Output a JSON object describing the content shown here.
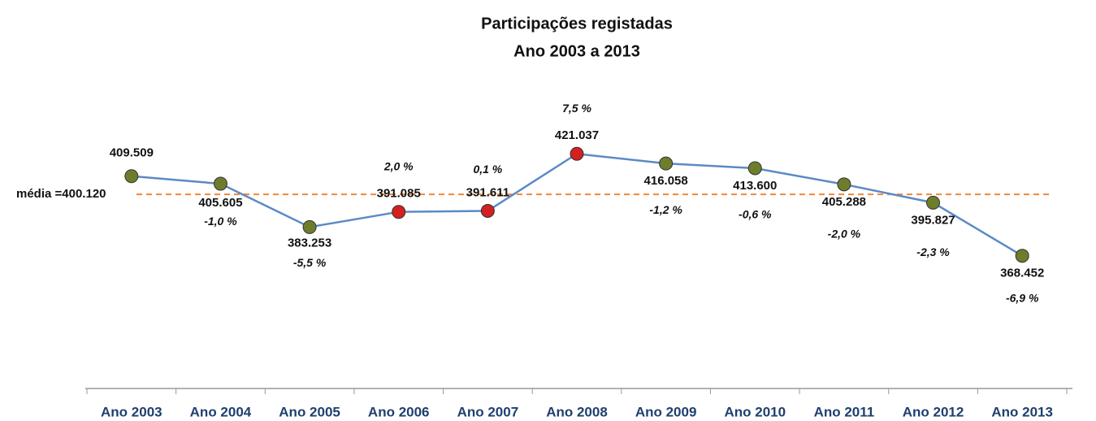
{
  "chart_data": {
    "type": "line",
    "title": "Participações registadas",
    "subtitle": "Ano 2003  a 2013",
    "categories": [
      "Ano 2003",
      "Ano 2004",
      "Ano 2005",
      "Ano 2006",
      "Ano 2007",
      "Ano 2008",
      "Ano 2009",
      "Ano 2010",
      "Ano 2011",
      "Ano 2012",
      "Ano 2013"
    ],
    "values": [
      409509,
      405605,
      383253,
      391085,
      391611,
      421037,
      416058,
      413600,
      405288,
      395827,
      368452
    ],
    "value_labels": [
      "409.509",
      "405.605",
      "383.253",
      "391.085",
      "391.611",
      "421.037",
      "416.058",
      "413.600",
      "405.288",
      "395.827",
      "368.452"
    ],
    "change_labels": [
      null,
      "-1,0 %",
      "-5,5 %",
      "2,0 %",
      "0,1 %",
      "7,5 %",
      "-1,2 %",
      "-0,6 %",
      "-2,0 %",
      "-2,3 %",
      "-6,9 %"
    ],
    "color": "#5b8ac6",
    "marker_colors": [
      "#6e7d2c",
      "#6e7d2c",
      "#6e7d2c",
      "#d42020",
      "#d42020",
      "#d42020",
      "#6e7d2c",
      "#6e7d2c",
      "#6e7d2c",
      "#6e7d2c",
      "#6e7d2c"
    ],
    "mean": {
      "value": 400120,
      "label": "média =400.120",
      "color": "#f0883a"
    },
    "ylim": [
      300000,
      440000
    ]
  }
}
